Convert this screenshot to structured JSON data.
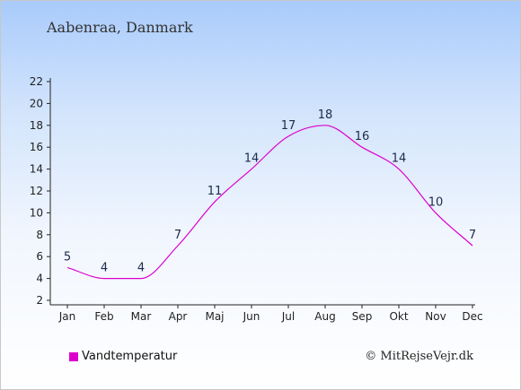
{
  "header": {
    "location": "Aabenraa, Danmark"
  },
  "chart_data": {
    "type": "line",
    "categories": [
      "Jan",
      "Feb",
      "Mar",
      "Apr",
      "Maj",
      "Jun",
      "Jul",
      "Aug",
      "Sep",
      "Okt",
      "Nov",
      "Dec"
    ],
    "series": [
      {
        "name": "Vandtemperatur",
        "values": [
          5,
          4,
          4,
          7,
          11,
          14,
          17,
          18,
          16,
          14,
          10,
          7
        ],
        "color": "#dd00cc"
      }
    ],
    "ylim": [
      2,
      22
    ],
    "yticks": [
      2,
      4,
      6,
      8,
      10,
      12,
      14,
      16,
      18,
      20,
      22
    ],
    "grid": false,
    "legend": "bottom-left"
  },
  "legend": {
    "label": "Vandtemperatur",
    "color": "#dd00cc"
  },
  "footer": {
    "credit": "© MitRejseVejr.dk"
  }
}
